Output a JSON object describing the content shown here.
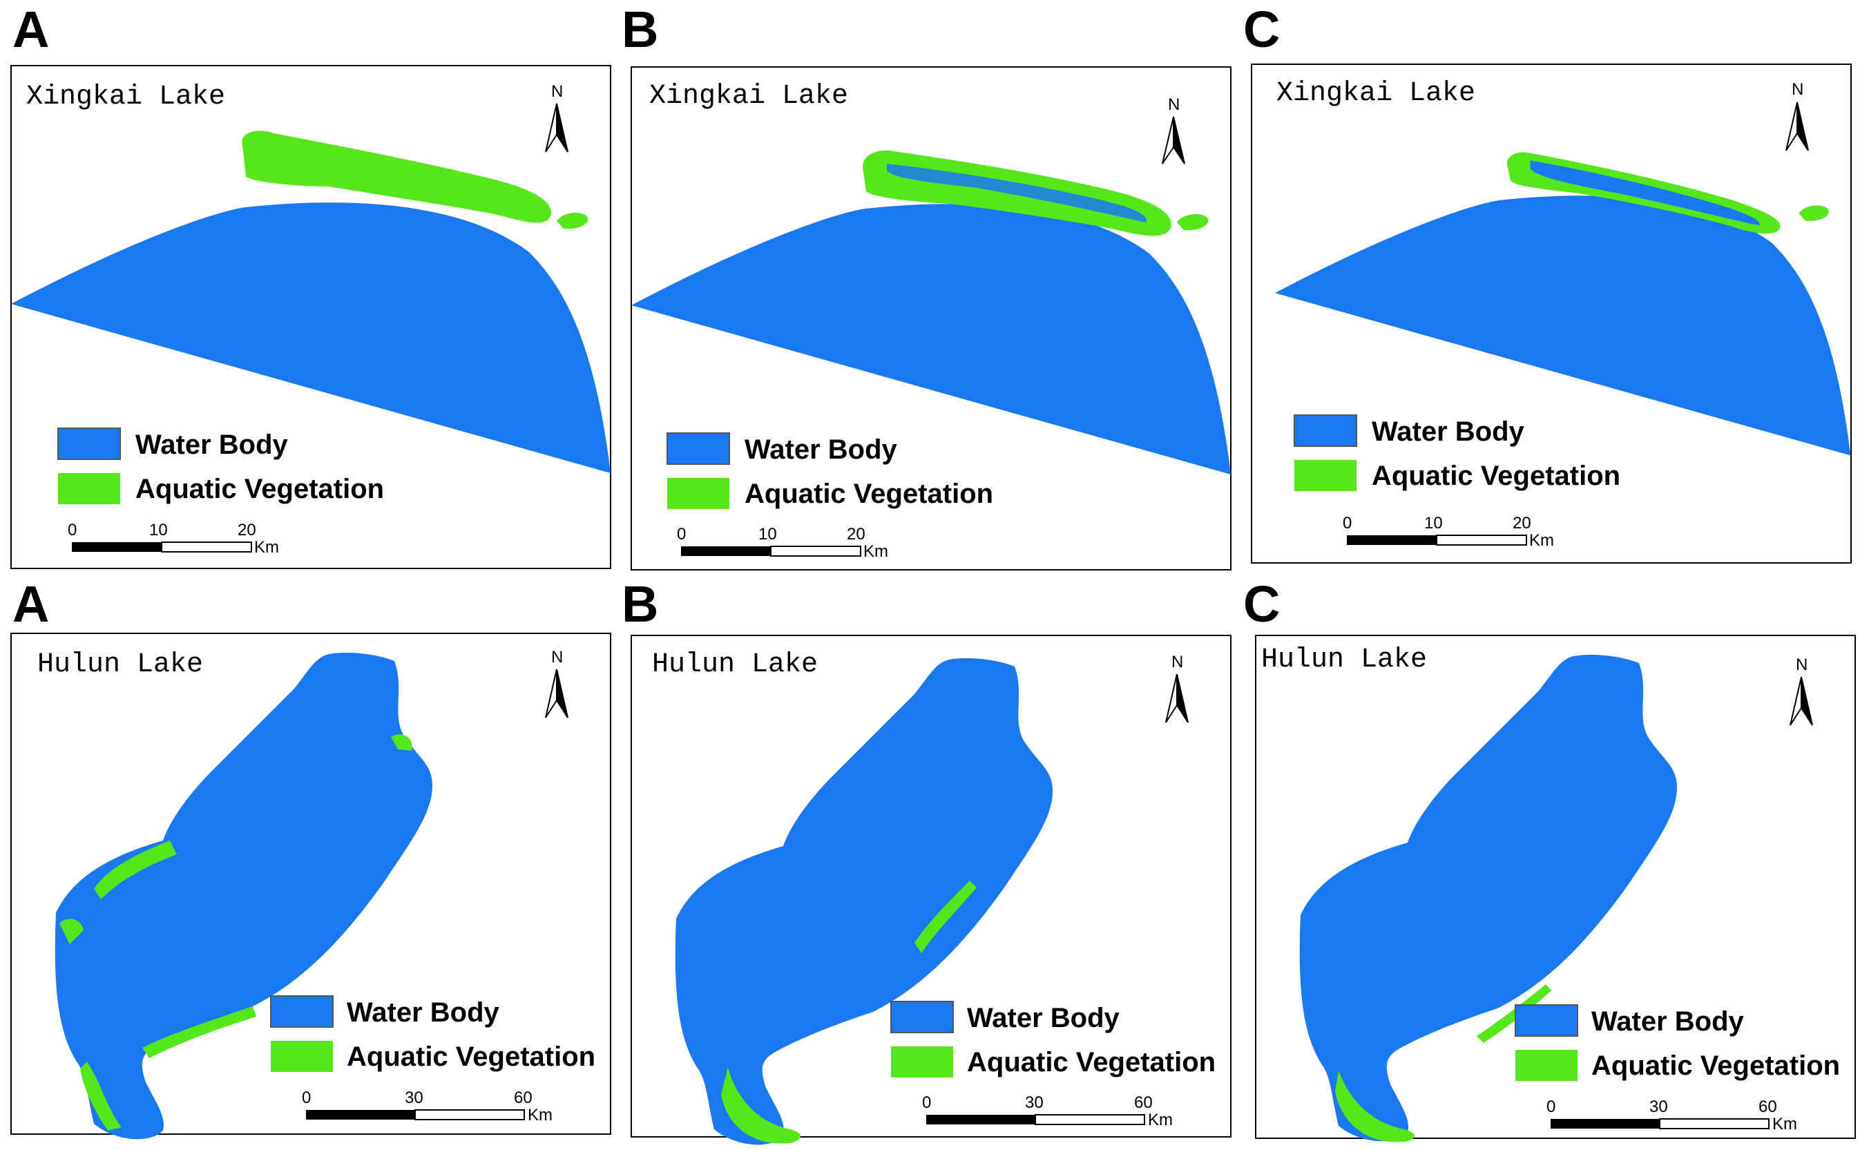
{
  "colors": {
    "water": "#1a78f0",
    "vegetation": "#55e61c",
    "frame": "#000000"
  },
  "legend": {
    "water_label": "Water Body",
    "vegetation_label": "Aquatic Vegetation"
  },
  "north_label": "N",
  "scale_unit": "Km",
  "xingkai": {
    "title": "Xingkai Lake",
    "scale_ticks": [
      "0",
      "10",
      "20"
    ],
    "panels": [
      {
        "letter": "A"
      },
      {
        "letter": "B"
      },
      {
        "letter": "C"
      }
    ]
  },
  "hulun": {
    "title": "Hulun Lake",
    "scale_ticks": [
      "0",
      "30",
      "60"
    ],
    "panels": [
      {
        "letter": "A"
      },
      {
        "letter": "B"
      },
      {
        "letter": "C"
      }
    ]
  }
}
